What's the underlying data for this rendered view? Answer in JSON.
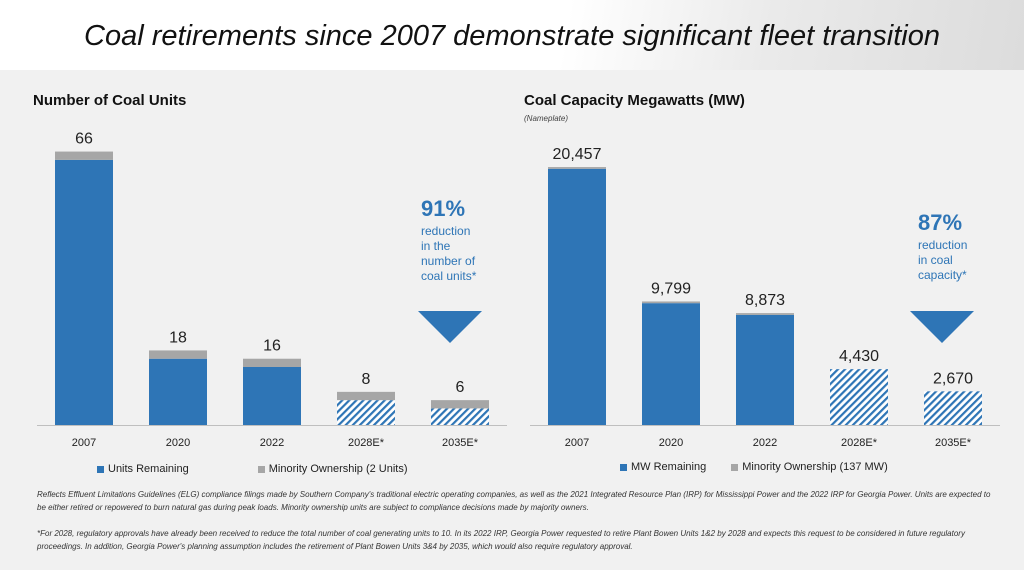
{
  "title": "Coal retirements since 2007 demonstrate significant fleet transition",
  "chart_data": [
    {
      "type": "bar",
      "title": "Number of Coal  Units",
      "subtitle": "",
      "categories": [
        "2007",
        "2020",
        "2022",
        "2028E*",
        "2035E*"
      ],
      "series": [
        {
          "name": "Units Remaining",
          "values": [
            64,
            16,
            14,
            6,
            4
          ],
          "color": "#2e75b6"
        },
        {
          "name": "Minority Ownership (2 Units)",
          "values": [
            2,
            2,
            2,
            2,
            2
          ],
          "color": "#a6a6a6"
        }
      ],
      "totals": [
        "66",
        "18",
        "16",
        "8",
        "6"
      ],
      "hatched_categories": [
        "2028E*",
        "2035E*"
      ],
      "ylim": [
        0,
        70
      ],
      "grid": false,
      "legend_position": "bottom",
      "callout": {
        "percent": "91%",
        "lines": [
          "reduction",
          "in the",
          "number of",
          "coal units*"
        ],
        "color": "#2e75b6"
      }
    },
    {
      "type": "bar",
      "title": "Coal Capacity Megawatts (MW)",
      "subtitle": "(Nameplate)",
      "categories": [
        "2007",
        "2020",
        "2022",
        "2028E*",
        "2035E*"
      ],
      "series": [
        {
          "name": "MW Remaining",
          "values": [
            20320,
            9662,
            8736,
            4430,
            2670
          ],
          "color": "#2e75b6"
        },
        {
          "name": "Minority Ownership (137 MW)",
          "values": [
            137,
            137,
            137,
            0,
            0
          ],
          "color": "#a6a6a6"
        }
      ],
      "totals": [
        "20,457",
        "9,799",
        "8,873",
        "4,430",
        "2,670"
      ],
      "hatched_categories": [
        "2028E*",
        "2035E*"
      ],
      "ylim": [
        0,
        23000
      ],
      "grid": false,
      "legend_position": "bottom",
      "callout": {
        "percent": "87%",
        "lines": [
          "reduction",
          "in coal",
          "capacity*"
        ],
        "color": "#2e75b6"
      }
    }
  ],
  "footnotes": [
    "Reflects Effluent Limitations Guidelines (ELG) compliance filings made by Southern Company's traditional electric operating companies, as well as the 2021 Integrated Resource Plan (IRP) for Mississippi Power and the 2022 IRP for Georgia Power. Units are expected to be either retired or repowered to burn natural gas during peak loads. Minority ownership units are subject to compliance decisions made by majority owners.",
    "*For 2028, regulatory approvals have already been received to reduce the total number of coal generating units to 10. In its 2022 IRP, Georgia Power requested to retire Plant Bowen Units 1&2 by 2028 and expects this request to be considered in future regulatory proceedings. In addition, Georgia Power's planning assumption includes the retirement of Plant Bowen Units 3&4 by 2035, which would also require regulatory approval."
  ]
}
